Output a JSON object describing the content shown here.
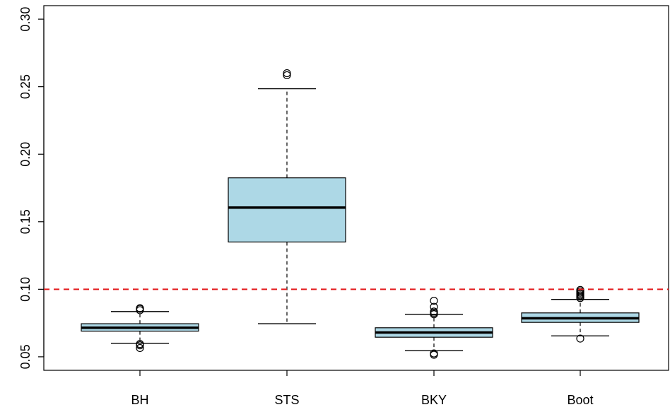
{
  "chart_data": {
    "type": "boxplot",
    "title": "",
    "xlabel": "",
    "ylabel": "",
    "ylim": [
      0.04,
      0.31
    ],
    "yticks": [
      "0.05",
      "0.10",
      "0.15",
      "0.20",
      "0.25",
      "0.30"
    ],
    "categories": [
      "BH",
      "STS",
      "BKY",
      "Boot"
    ],
    "box_fill": "#ADD8E6",
    "reference_line": {
      "y": 0.1,
      "color": "#E31A1C",
      "style": "dashed"
    },
    "boxes": [
      {
        "name": "BH",
        "whisker_low": 0.06,
        "q1": 0.069,
        "median": 0.0715,
        "q3": 0.0745,
        "whisker_high": 0.0835,
        "outliers": [
          0.0565,
          0.0585,
          0.0595,
          0.0845,
          0.0855,
          0.086
        ]
      },
      {
        "name": "STS",
        "whisker_low": 0.0745,
        "q1": 0.135,
        "median": 0.1605,
        "q3": 0.1825,
        "whisker_high": 0.2485,
        "outliers": [
          0.2585,
          0.26
        ]
      },
      {
        "name": "BKY",
        "whisker_low": 0.0545,
        "q1": 0.0645,
        "median": 0.068,
        "q3": 0.0715,
        "whisker_high": 0.0815,
        "outliers": [
          0.0515,
          0.0525,
          0.0815,
          0.0825,
          0.0835,
          0.087,
          0.0915
        ]
      },
      {
        "name": "Boot",
        "whisker_low": 0.0655,
        "q1": 0.0755,
        "median": 0.0785,
        "q3": 0.0825,
        "whisker_high": 0.0925,
        "outliers": [
          0.0635,
          0.0935,
          0.0945,
          0.0955,
          0.0965,
          0.0975,
          0.0985,
          0.0995
        ]
      }
    ]
  }
}
